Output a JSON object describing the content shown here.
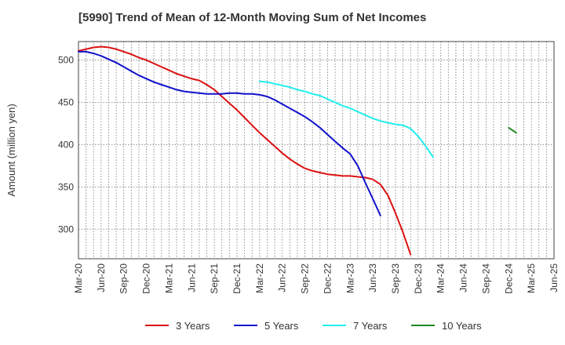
{
  "chart_data": {
    "type": "line",
    "title": "[5990]  Trend of Mean of 12-Month Moving Sum of Net Incomes",
    "xlabel": "",
    "ylabel": "Amount (million yen)",
    "x_ticks": [
      "Mar-20",
      "Jun-20",
      "Sep-20",
      "Dec-20",
      "Mar-21",
      "Jun-21",
      "Sep-21",
      "Dec-21",
      "Mar-22",
      "Jun-22",
      "Sep-22",
      "Dec-22",
      "Mar-23",
      "Jun-23",
      "Sep-23",
      "Dec-23",
      "Mar-24",
      "Jun-24",
      "Sep-24",
      "Dec-24",
      "Mar-25",
      "Jun-25"
    ],
    "ylim": [
      265,
      522
    ],
    "y_ticks": [
      300,
      350,
      400,
      450,
      500
    ],
    "grid": true,
    "legend_position": "bottom",
    "series": [
      {
        "name": "3 Years",
        "color": "#dd1111",
        "start": "Mar-20",
        "values": [
          511,
          513,
          515,
          516,
          515,
          513,
          510,
          507,
          503,
          500,
          496,
          492,
          488,
          484,
          481,
          478,
          476,
          471,
          465,
          457,
          449,
          441,
          432,
          423,
          414,
          406,
          398,
          390,
          383,
          377,
          372,
          369,
          367,
          365,
          364,
          363,
          363,
          362,
          361,
          359,
          353,
          340,
          319,
          296,
          270
        ]
      },
      {
        "name": "5 Years",
        "color": "#1111cc",
        "start": "Mar-20",
        "values": [
          510,
          510,
          508,
          505,
          501,
          497,
          492,
          487,
          482,
          478,
          474,
          471,
          468,
          465,
          463,
          462,
          461,
          460,
          460,
          460,
          461,
          461,
          460,
          460,
          459,
          457,
          453,
          448,
          443,
          438,
          433,
          427,
          420,
          412,
          404,
          396,
          389,
          375,
          355,
          336,
          316
        ]
      },
      {
        "name": "7 Years",
        "color": "#22eeee",
        "start": "Mar-22",
        "values": [
          475,
          474,
          472,
          470,
          468,
          465,
          463,
          460,
          458,
          454,
          450,
          446,
          443,
          439,
          435,
          431,
          428,
          426,
          424,
          423,
          419,
          410,
          398,
          385
        ]
      },
      {
        "name": "10 Years",
        "color": "#228822",
        "start": "Dec-24",
        "values": [
          420,
          414
        ]
      }
    ]
  }
}
